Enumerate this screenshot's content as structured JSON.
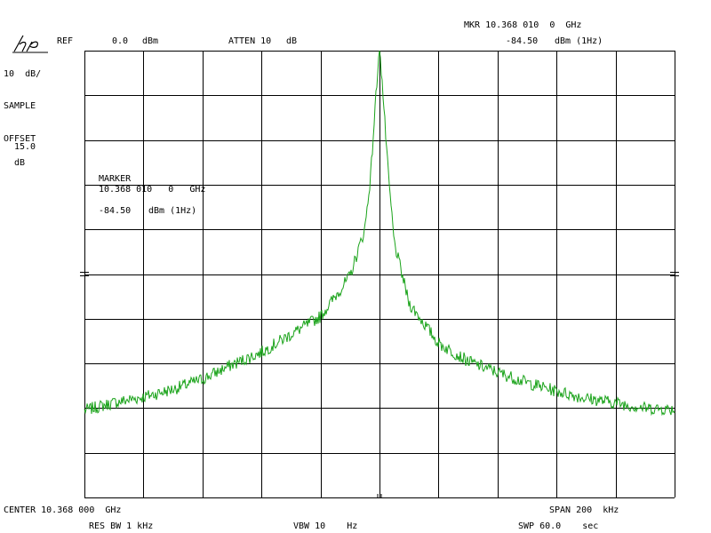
{
  "header": {
    "ref_label": "REF",
    "ref_value": "0.0",
    "ref_unit": "dBm",
    "atten_label": "ATTEN 10",
    "atten_unit": "dB",
    "mkr_label": "MKR 10.368 010  0  GHz",
    "mkr_value": "-84.50",
    "mkr_unit": "dBm (1Hz)"
  },
  "left_panel": {
    "scale": "10  dB/",
    "mode": "SAMPLE",
    "offset_label": "OFFSET",
    "offset_value": "15.0",
    "offset_unit": "dB"
  },
  "marker_box": {
    "title": "MARKER",
    "freq": "10.368 010   0   GHz",
    "value": "-84.50",
    "unit": "dBm (1Hz)"
  },
  "footer": {
    "center": "CENTER 10.368 000  GHz",
    "span": "SPAN 200  kHz",
    "res_bw": "RES BW 1 kHz",
    "vbw": "VBW 10    Hz",
    "swp": "SWP 60.0    sec"
  },
  "colors": {
    "trace": "#1aa31a",
    "grid": "#000000",
    "background": "#ffffff"
  },
  "icons": {
    "logo": "hp-logo"
  },
  "chart_data": {
    "type": "line",
    "x_unit": "kHz offset from center",
    "xlim": [
      -100,
      100
    ],
    "ylim": [
      -100,
      0
    ],
    "y_step_db": 10,
    "grid": true,
    "series": [
      {
        "values": [
          [
            -100,
            -80.5
          ],
          [
            -90,
            -78.8
          ],
          [
            -80,
            -77.5
          ],
          [
            -70,
            -75.8
          ],
          [
            -60,
            -73.5
          ],
          [
            -50,
            -70.3
          ],
          [
            -40,
            -67.5
          ],
          [
            -30,
            -63.5
          ],
          [
            -20,
            -59.5
          ],
          [
            -10,
            -50.5
          ],
          [
            -5,
            -40
          ],
          [
            -3,
            -28
          ],
          [
            -2,
            -18
          ],
          [
            -1,
            -8
          ],
          [
            -0.3,
            -1.5
          ],
          [
            0,
            0
          ],
          [
            0.3,
            -1.5
          ],
          [
            1,
            -8
          ],
          [
            2,
            -18
          ],
          [
            3,
            -28
          ],
          [
            5,
            -43
          ],
          [
            10,
            -56.5
          ],
          [
            20,
            -65.5
          ],
          [
            30,
            -69.5
          ],
          [
            40,
            -72
          ],
          [
            50,
            -74.3
          ],
          [
            60,
            -76.2
          ],
          [
            70,
            -77.8
          ],
          [
            80,
            -78.8
          ],
          [
            90,
            -80
          ],
          [
            100,
            -80.3
          ]
        ]
      }
    ]
  }
}
